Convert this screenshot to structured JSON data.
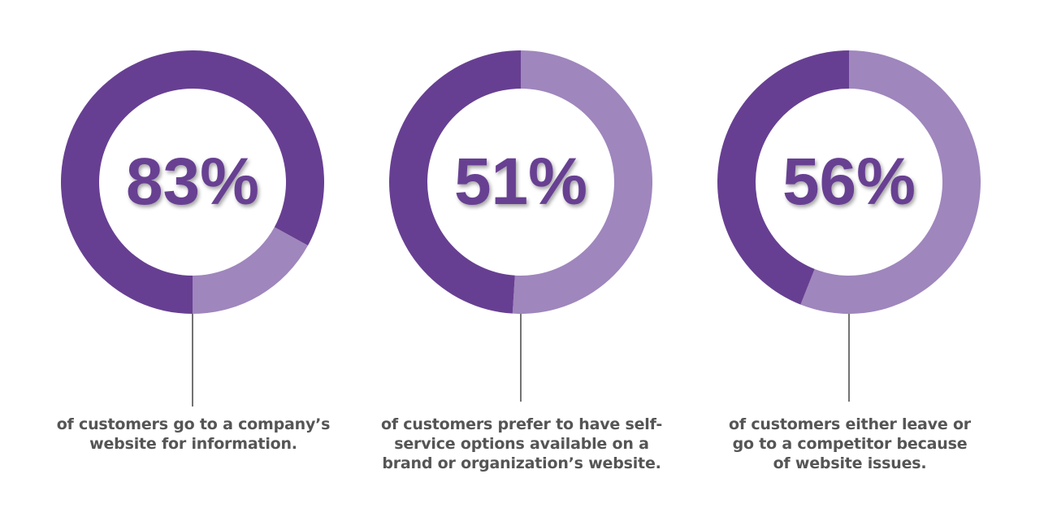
{
  "colors": {
    "primary": "#673f92",
    "secondary": "#9f86bd",
    "connector": "#444444",
    "caption": "#555555"
  },
  "chart_data": [
    {
      "type": "pie",
      "value_label": "83%",
      "slices": [
        {
          "value": 83,
          "color": "#673f92"
        },
        {
          "value": 17,
          "color": "#9f86bd"
        }
      ],
      "caption_lines": [
        "of customers go to a company’s",
        "website for information."
      ]
    },
    {
      "type": "pie",
      "value_label": "51%",
      "slices": [
        {
          "value": 51,
          "color": "#9f86bd"
        },
        {
          "value": 49,
          "color": "#673f92"
        }
      ],
      "caption_lines": [
        "of customers prefer to have self-",
        "service options available on a",
        "brand or organization’s website."
      ]
    },
    {
      "type": "pie",
      "value_label": "56%",
      "slices": [
        {
          "value": 56,
          "color": "#9f86bd"
        },
        {
          "value": 44,
          "color": "#673f92"
        }
      ],
      "caption_lines": [
        "of customers either leave or",
        "go to a competitor because",
        "of website issues."
      ]
    }
  ]
}
